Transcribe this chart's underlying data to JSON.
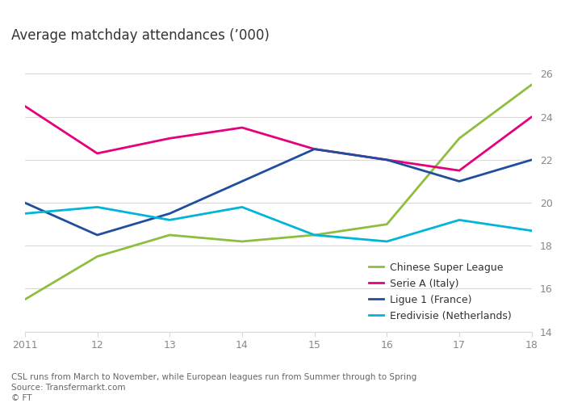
{
  "title": "Average matchday attendances (’000)",
  "years": [
    2011,
    2012,
    2013,
    2014,
    2015,
    2016,
    2017,
    2018
  ],
  "x_labels": [
    "2011",
    "12",
    "13",
    "14",
    "15",
    "16",
    "17",
    "18"
  ],
  "series": {
    "Chinese Super League": {
      "values": [
        15.5,
        17.5,
        18.5,
        18.2,
        18.5,
        19.0,
        23.0,
        25.5
      ],
      "color": "#8fbe3f"
    },
    "Serie A (Italy)": {
      "values": [
        24.5,
        22.3,
        23.0,
        23.5,
        22.5,
        22.0,
        21.5,
        24.0
      ],
      "color": "#e6007e"
    },
    "Ligue 1 (France)": {
      "values": [
        20.0,
        18.5,
        19.5,
        21.0,
        22.5,
        22.0,
        21.0,
        22.0
      ],
      "color": "#1f4e9e"
    },
    "Eredivisie (Netherlands)": {
      "values": [
        19.5,
        19.8,
        19.2,
        19.8,
        18.5,
        18.2,
        19.2,
        18.7
      ],
      "color": "#00b5d8"
    }
  },
  "ylim": [
    14,
    27
  ],
  "yticks": [
    14,
    16,
    18,
    20,
    22,
    24,
    26
  ],
  "legend_order": [
    "Chinese Super League",
    "Serie A (Italy)",
    "Ligue 1 (France)",
    "Eredivisie (Netherlands)"
  ],
  "footnote1": "CSL runs from March to November, while European leagues run from Summer through to Spring",
  "footnote2": "Source: Transfermarkt.com",
  "footnote3": "© FT",
  "background_color": "#ffffff",
  "plot_bg": "#ffffff",
  "grid_color": "#d9d9d9",
  "text_color": "#333333",
  "axis_text_color": "#888888",
  "footnote_color": "#666666",
  "line_width": 2.0,
  "title_fontsize": 12,
  "tick_fontsize": 9,
  "legend_fontsize": 9,
  "footnote_fontsize": 7.5
}
